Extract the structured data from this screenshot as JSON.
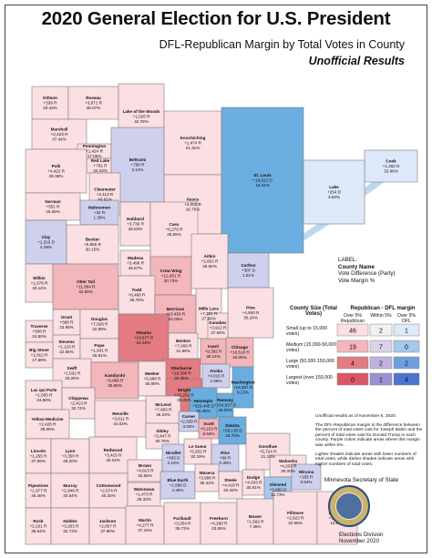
{
  "header": {
    "title": "2020 General Election for U.S. President",
    "subtitle": "DFL-Republican Margin by Total Votes in County",
    "status": "Unofficial Results"
  },
  "colors": {
    "strong_r": "#e27b82",
    "mid_r": "#f3b6bb",
    "light_r": "#fbdfe2",
    "within": "#f1f1f1",
    "light_d": "#dde8f8",
    "mid_d": "#a6c8ea",
    "strong_d": "#6aaee0",
    "purple_r": "#cfd0ee",
    "border": "#7d7d7d",
    "lake": "#bcd7ee"
  },
  "legend": {
    "heading": "LABEL:",
    "lines": [
      "County Name",
      "Vote Difference (Party)",
      "Vote Margin %"
    ]
  },
  "key_table": {
    "size_title": "County Size (Total Votes)",
    "margin_title": "Republican - DFL margin",
    "columns": [
      "Over 5% Republican",
      "Within 5%",
      "Over 5% DFL"
    ],
    "rows": [
      {
        "label": "Small (up to 15,000 votes)",
        "values": [
          "46",
          "2",
          "1"
        ]
      },
      {
        "label": "Medium (15,000-50,000 votes)",
        "values": [
          "19",
          "7",
          "0"
        ]
      },
      {
        "label": "Large (50,000-150,000 votes)",
        "values": [
          "4",
          "2",
          "2"
        ]
      },
      {
        "label": "Largest (over 150,000 votes)",
        "values": [
          "0",
          "1",
          "4"
        ]
      }
    ]
  },
  "notes": [
    "Unofficial results as of November 6, 2020.",
    "The DFL-Republican margin is the difference between the percent of total votes cast for Joseph Biden and the percent of total votes cast for Donald Trump in each county. Purple colors indicate areas where this margin was within 5%.",
    "Lighter shades indicate areas with lower numbers of total votes, while darker shades indicate areas with higher numbers of total votes."
  ],
  "agency": "Minnesota Secretary of State",
  "footer": [
    "Elections Division",
    "November 2020"
  ],
  "counties": [
    {
      "name": "Kittson",
      "diff": "+539 R",
      "pct": "20.43%",
      "fill": "light_r"
    },
    {
      "name": "Roseau",
      "diff": "+3,871 R",
      "pct": "46.07%",
      "fill": "light_r"
    },
    {
      "name": "Lake of the Woods",
      "diff": "+1,028 R",
      "pct": "42.78%",
      "fill": "light_r"
    },
    {
      "name": "Marshall",
      "diff": "+2,423 R",
      "pct": "47.44%",
      "fill": "light_r"
    },
    {
      "name": "Pennington",
      "diff": "+1,424 R",
      "pct": "17.05%",
      "fill": "light_r"
    },
    {
      "name": "Red Lake",
      "diff": "+761 R",
      "pct": "34.33%",
      "fill": "light_r"
    },
    {
      "name": "Polk",
      "diff": "+4,422 R",
      "pct": "28.38%",
      "fill": "light_r"
    },
    {
      "name": "Beltrami",
      "diff": "+758 R",
      "pct": "3.14%",
      "fill": "purple_r"
    },
    {
      "name": "Koochiching",
      "diff": "+1,474 R",
      "pct": "21.31%",
      "fill": "light_r"
    },
    {
      "name": "Cook",
      "diff": "+1,282 D",
      "pct": "33.96%",
      "fill": "light_d"
    },
    {
      "name": "Clearwater",
      "diff": "+2,113 R",
      "pct": "44.91%",
      "fill": "light_r"
    },
    {
      "name": "Norman",
      "diff": "+551 R",
      "pct": "16.05%",
      "fill": "light_r"
    },
    {
      "name": "Mahnomen",
      "diff": "+32 R",
      "pct": "1.39%",
      "fill": "purple_r"
    },
    {
      "name": "Itasca",
      "diff": "+4,000 R",
      "pct": "16.75%",
      "fill": "light_r"
    },
    {
      "name": "St. Louis",
      "diff": "+18,622 D",
      "pct": "15.64%",
      "fill": "strong_d"
    },
    {
      "name": "Lake",
      "diff": "+254 D",
      "pct": "3.53%",
      "fill": "light_d"
    },
    {
      "name": "Hubbard",
      "diff": "+3,736 R",
      "pct": "28.84%",
      "fill": "light_r"
    },
    {
      "name": "Cass",
      "diff": "+6,270 R",
      "pct": "28.65%",
      "fill": "light_r"
    },
    {
      "name": "Clay",
      "diff": "+1,315 D",
      "pct": "4.09%",
      "fill": "purple_r"
    },
    {
      "name": "Becker",
      "diff": "+5,855 R",
      "pct": "30.15%",
      "fill": "light_r"
    },
    {
      "name": "Wadena",
      "diff": "+3,498 R",
      "pct": "45.57%",
      "fill": "light_r"
    },
    {
      "name": "Crow Wing",
      "diff": "+12,951 R",
      "pct": "30.73%",
      "fill": "mid_r"
    },
    {
      "name": "Aitkin",
      "diff": "+2,652 R",
      "pct": "26.84%",
      "fill": "light_r"
    },
    {
      "name": "Carlton",
      "diff": "+307 D",
      "pct": "1.51%",
      "fill": "purple_r"
    },
    {
      "name": "Wilkin",
      "diff": "+1,576 R",
      "pct": "40.14%",
      "fill": "light_r"
    },
    {
      "name": "Otter Tail",
      "diff": "+11,894 R",
      "pct": "32.59%",
      "fill": "mid_r"
    },
    {
      "name": "Todd",
      "diff": "+6,468 R",
      "pct": "46.76%",
      "fill": "light_r"
    },
    {
      "name": "Morrison",
      "diff": "+10,450 R",
      "pct": "53.06%",
      "fill": "mid_r"
    },
    {
      "name": "Mille Lacs",
      "diff": "+7,331 R",
      "pct": "27.99%",
      "fill": "light_r"
    },
    {
      "name": "Pine",
      "diff": "+4,840 R",
      "pct": "30.24%",
      "fill": "light_r"
    },
    {
      "name": "Kanabec",
      "diff": "+3,912 R",
      "pct": "37.66%",
      "fill": "light_r"
    },
    {
      "name": "Grant",
      "diff": "+668 R",
      "pct": "23.99%",
      "fill": "light_r"
    },
    {
      "name": "Douglas",
      "diff": "+7,926 R",
      "pct": "32.89%",
      "fill": "light_r"
    },
    {
      "name": "Traverse",
      "diff": "+508 R",
      "pct": "24.50%",
      "fill": "light_r"
    },
    {
      "name": "Stevens",
      "diff": "+1,123 R",
      "pct": "22.56%",
      "fill": "light_r"
    },
    {
      "name": "Pope",
      "diff": "+1,931 R",
      "pct": "26.91%",
      "fill": "light_r"
    },
    {
      "name": "Stearns",
      "diff": "+19,677 R",
      "pct": "22.49%",
      "fill": "strong_r"
    },
    {
      "name": "Benton",
      "diff": "+7,006 R",
      "pct": "31.88%",
      "fill": "light_r"
    },
    {
      "name": "Sherburne",
      "diff": "+18,308 R",
      "pct": "32.46%",
      "fill": "strong_r"
    },
    {
      "name": "Isanti",
      "diff": "+9,392 R",
      "pct": "38.14%",
      "fill": "mid_r"
    },
    {
      "name": "Chisago",
      "diff": "+10,516 R",
      "pct": "34.05%",
      "fill": "mid_r"
    },
    {
      "name": "Big Stone",
      "diff": "+1,012 R",
      "pct": "17.89%",
      "fill": "light_r"
    },
    {
      "name": "Swift",
      "diff": "+1,532 R",
      "pct": "29.25%",
      "fill": "light_r"
    },
    {
      "name": "Kandiyohi",
      "diff": "+9,886 R",
      "pct": "30.66%",
      "fill": "mid_r"
    },
    {
      "name": "Meeker",
      "diff": "+6,988 R",
      "pct": "45.98%",
      "fill": "light_r"
    },
    {
      "name": "Wright",
      "diff": "+22,251 R",
      "pct": "29.25%",
      "fill": "strong_r"
    },
    {
      "name": "Anoka",
      "diff": "+4,016 R",
      "pct": "1.06%",
      "fill": "purple_r"
    },
    {
      "name": "Washington",
      "diff": "+16,367 D",
      "pct": "9.23%",
      "fill": "strong_d"
    },
    {
      "name": "Lac qui Parle",
      "diff": "+1,065 R",
      "pct": "24.88%",
      "fill": "light_r"
    },
    {
      "name": "Chippewa",
      "diff": "+2,413 R",
      "pct": "32.74%",
      "fill": "light_r"
    },
    {
      "name": "Hennepin",
      "diff": "+326,445 D",
      "pct": "43.48%",
      "fill": "strong_d"
    },
    {
      "name": "Ramsey",
      "diff": "+134,627 D",
      "pct": "46.00%",
      "fill": "strong_d"
    },
    {
      "name": "McLeod",
      "diff": "+7,900 R",
      "pct": "35.23%",
      "fill": "light_r"
    },
    {
      "name": "Carver",
      "diff": "+2,338 R",
      "pct": "3.04%",
      "fill": "purple_r"
    },
    {
      "name": "Scott",
      "diff": "+6,163 R",
      "pct": "6.64%",
      "fill": "mid_r"
    },
    {
      "name": "Dakota",
      "diff": "+56,135 D",
      "pct": "18.70%",
      "fill": "strong_d"
    },
    {
      "name": "Yellow Medicine",
      "diff": "+2,428 R",
      "pct": "39.09%",
      "fill": "light_r"
    },
    {
      "name": "Renville",
      "diff": "+3,811 R",
      "pct": "44.03%",
      "fill": "light_r"
    },
    {
      "name": "Sibley",
      "diff": "+3,447 R",
      "pct": "40.79%",
      "fill": "light_r"
    },
    {
      "name": "Lincoln",
      "diff": "+1,265 R",
      "pct": "37.99%",
      "fill": "light_r"
    },
    {
      "name": "Lyon",
      "diff": "+3,350 R",
      "pct": "26.20%",
      "fill": "light_r"
    },
    {
      "name": "Redwood",
      "diff": "+3,415 R",
      "pct": "40.24%",
      "fill": "light_r"
    },
    {
      "name": "Brown",
      "diff": "+4,813 R",
      "pct": "32.65%",
      "fill": "light_r"
    },
    {
      "name": "Nicollet",
      "diff": "+603 D",
      "pct": "3.10%",
      "fill": "purple_r"
    },
    {
      "name": "Le Sueur",
      "diff": "+5,552 R",
      "pct": "32.19%",
      "fill": "light_r"
    },
    {
      "name": "Rice",
      "diff": "+99 R",
      "pct": "0.30%",
      "fill": "purple_r"
    },
    {
      "name": "Goodhue",
      "diff": "+5,724 R",
      "pct": "21.13%",
      "fill": "light_r"
    },
    {
      "name": "Wabasha",
      "diff": "+4,203 R",
      "pct": "30.00%",
      "fill": "light_r"
    },
    {
      "name": "Pipestone",
      "diff": "+1,977 R",
      "pct": "45.46%",
      "fill": "light_r"
    },
    {
      "name": "Murray",
      "diff": "+1,946 R",
      "pct": "40.04%",
      "fill": "light_r"
    },
    {
      "name": "Cottonwood",
      "diff": "+2,574 R",
      "pct": "40.30%",
      "fill": "light_r"
    },
    {
      "name": "Watonwan",
      "diff": "+1,473 R",
      "pct": "28.33%",
      "fill": "light_r"
    },
    {
      "name": "Blue Earth",
      "diff": "+1,588 D",
      "pct": "4.45%",
      "fill": "purple_r"
    },
    {
      "name": "Waseca",
      "diff": "+3,998 R",
      "pct": "35.44%",
      "fill": "light_r"
    },
    {
      "name": "Steele",
      "diff": "+4,418 R",
      "pct": "20.43%",
      "fill": "light_r"
    },
    {
      "name": "Dodge",
      "diff": "+4,033 R",
      "pct": "30.61%",
      "fill": "light_r"
    },
    {
      "name": "Olmsted",
      "diff": "+9,850 D",
      "pct": "11.73%",
      "fill": "mid_d"
    },
    {
      "name": "Winona",
      "diff": "+155 R",
      "pct": "0.54%",
      "fill": "purple_r"
    },
    {
      "name": "Rock",
      "diff": "+2,101 R",
      "pct": "39.54%",
      "fill": "light_r"
    },
    {
      "name": "Nobles",
      "diff": "+3,263 R",
      "pct": "32.73%",
      "fill": "light_r"
    },
    {
      "name": "Jackson",
      "diff": "+2,057 R",
      "pct": "37.98%",
      "fill": "light_r"
    },
    {
      "name": "Martin",
      "diff": "+4,277 R",
      "pct": "37.18%",
      "fill": "light_r"
    },
    {
      "name": "Faribault",
      "diff": "+3,054 R",
      "pct": "35.73%",
      "fill": "light_r"
    },
    {
      "name": "Freeborn",
      "diff": "+4,280 R",
      "pct": "23.06%",
      "fill": "light_r"
    },
    {
      "name": "Mower",
      "diff": "+1,592 R",
      "pct": "7.45%",
      "fill": "light_r"
    },
    {
      "name": "Fillmore",
      "diff": "+2,622 R",
      "pct": "22.58%",
      "fill": "light_r"
    },
    {
      "name": "Houston",
      "diff": "+1,492 R",
      "pct": "13.96%",
      "fill": "light_r"
    }
  ]
}
